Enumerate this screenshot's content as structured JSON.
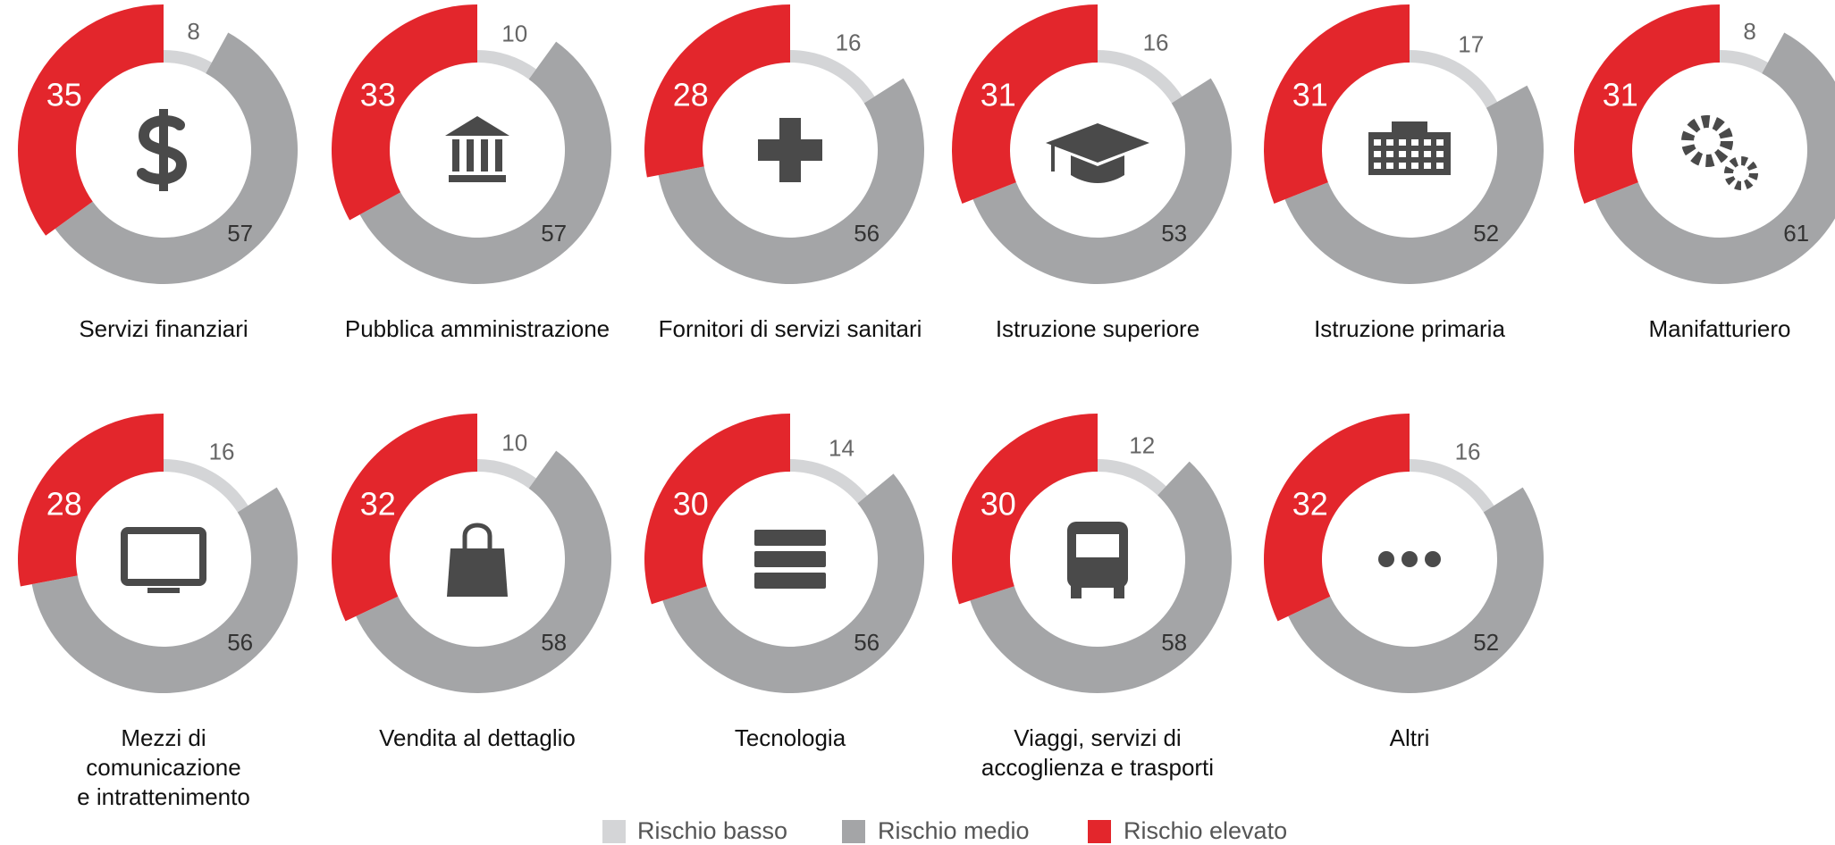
{
  "chart_data": {
    "type": "donut",
    "categories": [
      "Rischio basso",
      "Rischio medio",
      "Rischio elevato"
    ],
    "colors": [
      "#d4d5d7",
      "#a4a5a7",
      "#e3262c"
    ],
    "panels": [
      {
        "title": "Servizi finanziari",
        "values": [
          8,
          57,
          35
        ]
      },
      {
        "title": "Pubblica amministrazione",
        "values": [
          10,
          57,
          33
        ]
      },
      {
        "title": "Fornitori di servizi sanitari",
        "values": [
          16,
          56,
          28
        ]
      },
      {
        "title": "Istruzione superiore",
        "values": [
          16,
          53,
          31
        ]
      },
      {
        "title": "Istruzione primaria",
        "values": [
          17,
          52,
          31
        ]
      },
      {
        "title": "Manifatturiero",
        "values": [
          8,
          61,
          31
        ]
      },
      {
        "title": "Mezzi di\ncomunicazione\ne intrattenimento",
        "values": [
          16,
          56,
          28
        ]
      },
      {
        "title": "Vendita al dettaglio",
        "values": [
          10,
          58,
          32
        ]
      },
      {
        "title": "Tecnologia",
        "values": [
          14,
          56,
          30
        ]
      },
      {
        "title": "Viaggi, servizi di\naccoglienza e trasporti",
        "values": [
          12,
          58,
          30
        ]
      },
      {
        "title": "Altri",
        "values": [
          16,
          52,
          32
        ]
      }
    ]
  }
}
